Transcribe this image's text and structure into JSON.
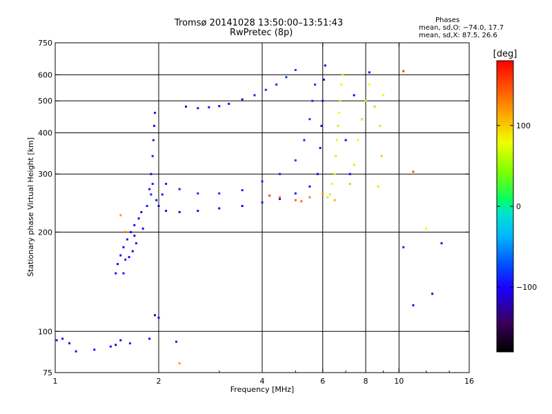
{
  "header": {
    "title_line1": "Tromsø 20141028 13:50:00–13:51:43",
    "title_line2": "RwPretec (8p)"
  },
  "stats": {
    "heading": "Phases",
    "line1": "mean, sd,O: −74.0, 17.7",
    "line2": "mean, sd,X:  87.5, 26.6"
  },
  "chart_data": {
    "type": "scatter",
    "xlabel": "Frequency [MHz]",
    "ylabel": "Stationary phase Virtual Height [km]",
    "x_scale": "log",
    "y_scale": "log",
    "xlim": [
      1,
      16
    ],
    "ylim": [
      75,
      750
    ],
    "x_ticks": [
      1,
      2,
      4,
      6,
      8,
      10,
      16
    ],
    "x_tick_labels": [
      "1",
      "2",
      "4",
      "6",
      "8",
      "10",
      "16"
    ],
    "y_ticks": [
      75,
      100,
      200,
      300,
      400,
      500,
      600,
      750
    ],
    "y_tick_labels": [
      "75",
      "100",
      "200",
      "300",
      "400",
      "500",
      "600",
      "750"
    ],
    "grid_x": [
      2,
      4,
      6,
      8,
      10
    ],
    "grid_y": [
      100,
      200,
      300,
      400,
      500,
      600
    ],
    "colorbar": {
      "label": "[deg]",
      "range": [
        -180,
        180
      ],
      "ticks": [
        100,
        0,
        -100
      ],
      "tick_labels": [
        "100",
        "0",
        "−100"
      ],
      "colormap": "rainbow"
    },
    "series": [
      {
        "mode": "O",
        "points": [
          [
            1.01,
            94,
            -90
          ],
          [
            1.05,
            95,
            -100
          ],
          [
            1.1,
            92,
            -110
          ],
          [
            1.15,
            87,
            -95
          ],
          [
            1.3,
            88,
            -100
          ],
          [
            1.45,
            90,
            -95
          ],
          [
            1.5,
            91,
            -120
          ],
          [
            1.55,
            94,
            -100
          ],
          [
            1.65,
            92,
            -90
          ],
          [
            1.5,
            150,
            -95
          ],
          [
            1.52,
            160,
            -100
          ],
          [
            1.55,
            170,
            -110
          ],
          [
            1.58,
            180,
            -100
          ],
          [
            1.62,
            190,
            -95
          ],
          [
            1.66,
            200,
            -100
          ],
          [
            1.7,
            210,
            -105
          ],
          [
            1.72,
            185,
            -95
          ],
          [
            1.75,
            220,
            -100
          ],
          [
            1.78,
            230,
            -110
          ],
          [
            1.68,
            175,
            -100
          ],
          [
            1.6,
            165,
            -90
          ],
          [
            1.58,
            150,
            -95
          ],
          [
            1.64,
            168,
            -100
          ],
          [
            1.7,
            195,
            -110
          ],
          [
            1.8,
            205,
            -100
          ],
          [
            1.85,
            240,
            -90
          ],
          [
            1.88,
            270,
            -95
          ],
          [
            1.9,
            300,
            -100
          ],
          [
            1.92,
            340,
            -90
          ],
          [
            1.93,
            380,
            -95
          ],
          [
            1.94,
            420,
            -100
          ],
          [
            1.95,
            460,
            -90
          ],
          [
            1.9,
            260,
            -85
          ],
          [
            1.92,
            280,
            -90
          ],
          [
            1.97,
            250,
            -100
          ],
          [
            2.0,
            240,
            -110
          ],
          [
            2.05,
            260,
            -95
          ],
          [
            2.1,
            280,
            -90
          ],
          [
            2.1,
            232,
            -100
          ],
          [
            2.3,
            230,
            -110
          ],
          [
            2.6,
            232,
            -105
          ],
          [
            3.0,
            236,
            -100
          ],
          [
            3.5,
            240,
            -100
          ],
          [
            4.0,
            246,
            -95
          ],
          [
            4.5,
            252,
            -100
          ],
          [
            5.0,
            262,
            -95
          ],
          [
            5.5,
            275,
            -100
          ],
          [
            5.8,
            300,
            -105
          ],
          [
            5.9,
            360,
            -100
          ],
          [
            5.95,
            420,
            -110
          ],
          [
            6.0,
            500,
            -100
          ],
          [
            6.05,
            580,
            -105
          ],
          [
            6.1,
            640,
            -110
          ],
          [
            2.3,
            270,
            -90
          ],
          [
            2.6,
            262,
            -85
          ],
          [
            3.0,
            262,
            -85
          ],
          [
            3.5,
            268,
            -90
          ],
          [
            4.0,
            285,
            -85
          ],
          [
            4.5,
            300,
            -90
          ],
          [
            5.0,
            330,
            -80
          ],
          [
            5.3,
            380,
            -85
          ],
          [
            5.5,
            440,
            -80
          ],
          [
            5.6,
            500,
            -85
          ],
          [
            5.7,
            560,
            -80
          ],
          [
            2.4,
            480,
            -110
          ],
          [
            2.6,
            475,
            -100
          ],
          [
            2.8,
            478,
            -90
          ],
          [
            3.0,
            482,
            -110
          ],
          [
            3.2,
            490,
            -100
          ],
          [
            3.5,
            505,
            -95
          ],
          [
            3.8,
            520,
            -90
          ],
          [
            4.1,
            540,
            -85
          ],
          [
            4.4,
            560,
            -85
          ],
          [
            4.7,
            590,
            -80
          ],
          [
            5.0,
            620,
            -80
          ],
          [
            7.0,
            380,
            -100
          ],
          [
            7.2,
            300,
            -100
          ],
          [
            7.4,
            520,
            -100
          ],
          [
            7.8,
            440,
            -110
          ],
          [
            8.2,
            610,
            -100
          ],
          [
            10.3,
            180,
            -90
          ],
          [
            11.0,
            120,
            -95
          ],
          [
            13.3,
            185,
            -100
          ],
          [
            12.5,
            130,
            -110
          ],
          [
            1.95,
            112,
            -110
          ],
          [
            2.0,
            110,
            -100
          ],
          [
            1.88,
            95,
            -100
          ],
          [
            2.25,
            93,
            -90
          ]
        ],
        "notes": "Blue-coded (O-mode) traces across the ionogram"
      },
      {
        "mode": "X",
        "points": [
          [
            6.3,
            260,
            60
          ],
          [
            6.4,
            280,
            70
          ],
          [
            6.5,
            300,
            80
          ],
          [
            6.55,
            340,
            90
          ],
          [
            6.6,
            380,
            85
          ],
          [
            6.65,
            420,
            90
          ],
          [
            6.7,
            460,
            80
          ],
          [
            6.75,
            500,
            90
          ],
          [
            6.8,
            560,
            85
          ],
          [
            6.85,
            600,
            90
          ],
          [
            6.5,
            250,
            110
          ],
          [
            6.2,
            255,
            90
          ],
          [
            7.2,
            280,
            100
          ],
          [
            7.4,
            320,
            90
          ],
          [
            7.6,
            380,
            80
          ],
          [
            7.8,
            440,
            85
          ],
          [
            8.0,
            500,
            90
          ],
          [
            8.2,
            560,
            80
          ],
          [
            8.5,
            480,
            100
          ],
          [
            8.8,
            420,
            90
          ],
          [
            9.0,
            520,
            85
          ],
          [
            8.9,
            340,
            100
          ],
          [
            5.0,
            250,
            140
          ],
          [
            5.5,
            255,
            130
          ],
          [
            6.0,
            262,
            120
          ],
          [
            4.2,
            258,
            150
          ],
          [
            4.5,
            255,
            140
          ],
          [
            5.2,
            248,
            135
          ],
          [
            10.3,
            615,
            160
          ],
          [
            11.0,
            305,
            150
          ],
          [
            2.3,
            80,
            120
          ],
          [
            1.6,
            200,
            130
          ],
          [
            1.55,
            225,
            115
          ],
          [
            8.7,
            275,
            90
          ],
          [
            12.0,
            205,
            80
          ]
        ],
        "notes": "Yellow-green / red coded (X-mode) traces"
      }
    ]
  }
}
